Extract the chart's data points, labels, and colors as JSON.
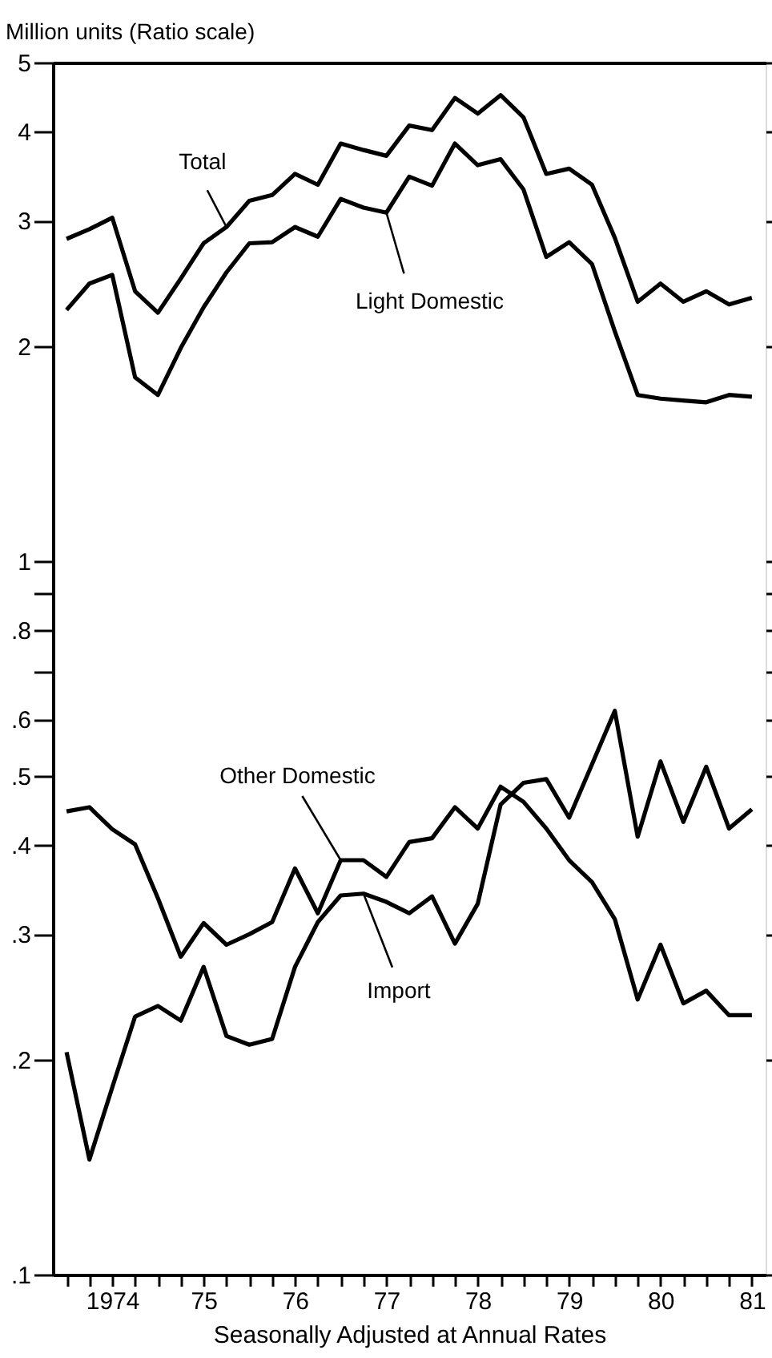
{
  "chart_data": {
    "type": "line",
    "ylabel": "Million units (Ratio scale)",
    "xlabel": "Seasonally Adjusted at Annual Rates",
    "log": true,
    "grid": false,
    "legend": false,
    "marker": "none",
    "line_style": "solid",
    "ylim": [
      0.1,
      5
    ],
    "yticks": [
      {
        "value": 0.1,
        "label": ".1"
      },
      {
        "value": 0.2,
        "label": ".2"
      },
      {
        "value": 0.3,
        "label": ".3"
      },
      {
        "value": 0.4,
        "label": ".4"
      },
      {
        "value": 0.5,
        "label": ".5"
      },
      {
        "value": 0.6,
        "label": ".6"
      },
      {
        "value": 0.7,
        "label": null
      },
      {
        "value": 0.8,
        "label": ".8"
      },
      {
        "value": 0.9,
        "label": null
      },
      1,
      2,
      3,
      4,
      5
    ],
    "categories": [
      null,
      null,
      "1974",
      null,
      null,
      null,
      "75",
      null,
      null,
      null,
      "76",
      null,
      null,
      null,
      "77",
      null,
      null,
      null,
      "78",
      null,
      null,
      null,
      "79",
      null,
      null,
      null,
      "80",
      null,
      null,
      null,
      "81"
    ],
    "series": [
      {
        "name": "Total",
        "color": "#000000",
        "values": [
          2.83,
          2.92,
          3.03,
          2.39,
          2.23,
          2.49,
          2.79,
          2.94,
          3.2,
          3.26,
          3.49,
          3.37,
          3.85,
          3.77,
          3.7,
          4.08,
          4.02,
          4.46,
          4.24,
          4.5,
          4.19,
          3.49,
          3.55,
          3.37,
          2.84,
          2.31,
          2.45,
          2.31,
          2.39,
          2.29,
          2.34
        ]
      },
      {
        "name": "Light Domestic",
        "color": "#000000",
        "values": [
          2.25,
          2.45,
          2.52,
          1.81,
          1.71,
          1.99,
          2.27,
          2.54,
          2.79,
          2.8,
          2.94,
          2.85,
          3.22,
          3.13,
          3.08,
          3.46,
          3.36,
          3.85,
          3.59,
          3.66,
          3.32,
          2.67,
          2.8,
          2.61,
          2.1,
          1.71,
          1.69,
          1.68,
          1.67,
          1.71,
          1.7
        ]
      },
      {
        "name": "Other Domestic",
        "color": "#000000",
        "values": [
          0.446,
          0.452,
          0.421,
          0.401,
          0.337,
          0.279,
          0.311,
          0.29,
          0.3,
          0.312,
          0.371,
          0.321,
          0.381,
          0.381,
          0.361,
          0.404,
          0.409,
          0.452,
          0.422,
          0.483,
          0.46,
          0.422,
          0.381,
          0.355,
          0.315,
          0.243,
          0.29,
          0.24,
          0.25,
          0.231,
          0.231
        ]
      },
      {
        "name": "Import",
        "color": "#000000",
        "values": [
          0.205,
          0.145,
          0.183,
          0.23,
          0.238,
          0.227,
          0.27,
          0.216,
          0.21,
          0.214,
          0.27,
          0.312,
          0.34,
          0.342,
          0.333,
          0.321,
          0.339,
          0.291,
          0.331,
          0.456,
          0.489,
          0.495,
          0.437,
          0.519,
          0.617,
          0.411,
          0.524,
          0.431,
          0.515,
          0.422,
          0.449
        ]
      }
    ]
  }
}
